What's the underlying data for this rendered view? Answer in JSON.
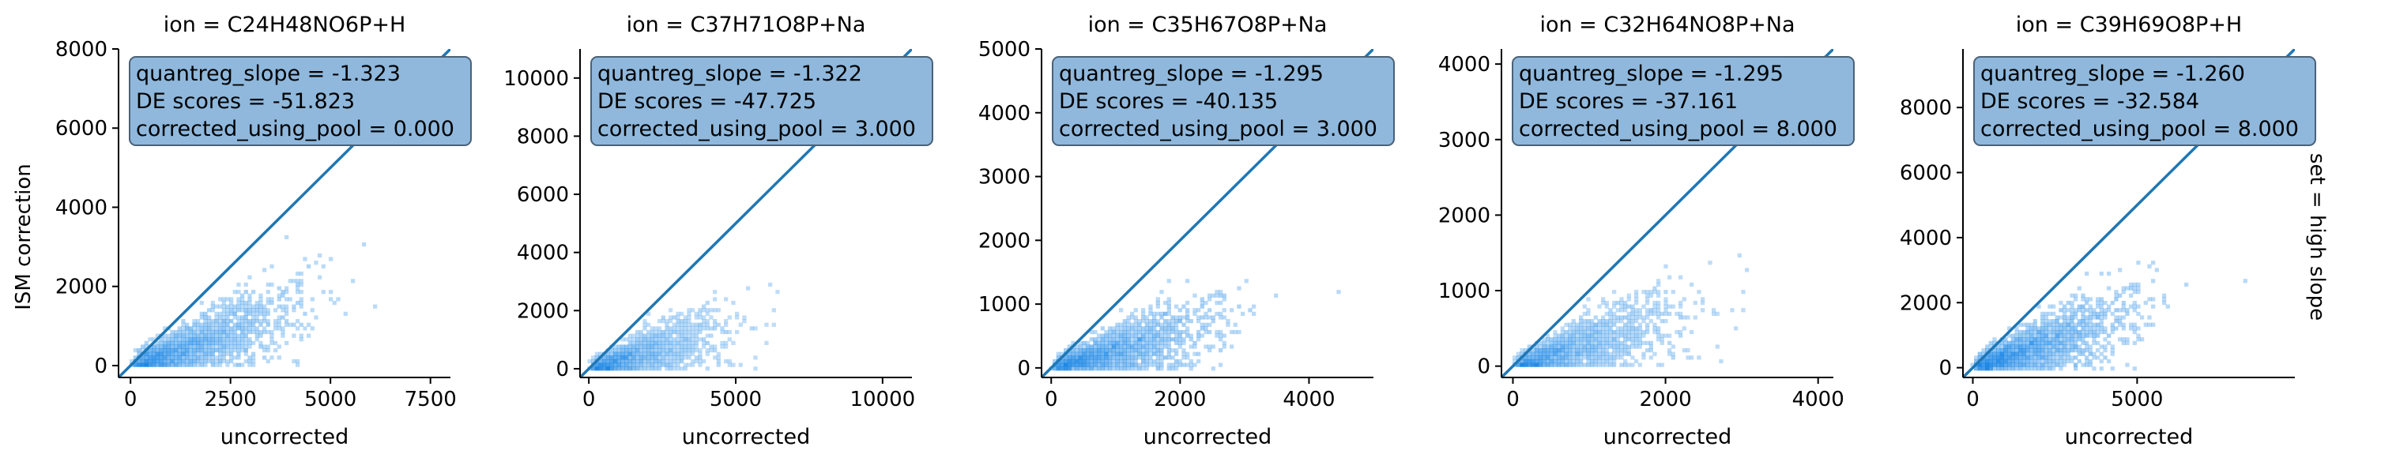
{
  "figure": {
    "row_label": "set = high slope",
    "ylabel": "ISM correction",
    "xlabel": "uncorrected"
  },
  "chart_data": [
    {
      "type": "scatter",
      "title": "ion = C24H48NO6P+H",
      "xlabel": "uncorrected",
      "ylabel": "ISM correction",
      "xlim": [
        -300,
        8000
      ],
      "ylim": [
        -300,
        8000
      ],
      "xticks": [
        0,
        2500,
        5000,
        7500
      ],
      "xtick_labels": [
        "0",
        "2500",
        "5000",
        "7500"
      ],
      "yticks": [
        0,
        2000,
        4000,
        6000,
        8000
      ],
      "ytick_labels": [
        "0",
        "2000",
        "4000",
        "6000",
        "8000"
      ],
      "identity_line": true,
      "annotation": [
        "quantreg_slope = -1.323",
        "DE scores = -51.823",
        "corrected_using_pool = 0.000"
      ],
      "density": {
        "xmax": 7400,
        "slope": 0.32,
        "spread": 450,
        "ymax": 3600
      }
    },
    {
      "type": "scatter",
      "title": "ion = C37H71O8P+Na",
      "xlabel": "uncorrected",
      "ylabel": "",
      "xlim": [
        -300,
        11000
      ],
      "ylim": [
        -300,
        11000
      ],
      "xticks": [
        0,
        5000,
        10000
      ],
      "xtick_labels": [
        "0",
        "5000",
        "10000"
      ],
      "yticks": [
        0,
        2000,
        4000,
        6000,
        8000,
        10000
      ],
      "ytick_labels": [
        "0",
        "2000",
        "4000",
        "6000",
        "8000",
        "10000"
      ],
      "identity_line": true,
      "annotation": [
        "quantreg_slope = -1.322",
        "DE scores = -47.725",
        "corrected_using_pool = 3.000"
      ],
      "density": {
        "xmax": 8000,
        "slope": 0.28,
        "spread": 450,
        "ymax": 3200
      }
    },
    {
      "type": "scatter",
      "title": "ion = C35H67O8P+Na",
      "xlabel": "uncorrected",
      "ylabel": "",
      "xlim": [
        -150,
        5000
      ],
      "ylim": [
        -150,
        5000
      ],
      "xticks": [
        0,
        2000,
        4000
      ],
      "xtick_labels": [
        "0",
        "2000",
        "4000"
      ],
      "yticks": [
        0,
        1000,
        2000,
        3000,
        4000,
        5000
      ],
      "ytick_labels": [
        "0",
        "1000",
        "2000",
        "3000",
        "4000",
        "5000"
      ],
      "identity_line": true,
      "annotation": [
        "quantreg_slope = -1.295",
        "DE scores = -40.135",
        "corrected_using_pool = 3.000"
      ],
      "density": {
        "xmax": 4600,
        "slope": 0.27,
        "spread": 220,
        "ymax": 1400
      }
    },
    {
      "type": "scatter",
      "title": "ion = C32H64NO8P+Na",
      "xlabel": "uncorrected",
      "ylabel": "",
      "xlim": [
        -150,
        4200
      ],
      "ylim": [
        -150,
        4200
      ],
      "xticks": [
        0,
        2000,
        4000
      ],
      "xtick_labels": [
        "0",
        "2000",
        "4000"
      ],
      "yticks": [
        0,
        1000,
        2000,
        3000,
        4000
      ],
      "ytick_labels": [
        "0",
        "1000",
        "2000",
        "3000",
        "4000"
      ],
      "identity_line": true,
      "annotation": [
        "quantreg_slope = -1.295",
        "DE scores = -37.161",
        "corrected_using_pool = 8.000"
      ],
      "density": {
        "xmax": 3800,
        "slope": 0.3,
        "spread": 200,
        "ymax": 1500
      }
    },
    {
      "type": "scatter",
      "title": "ion = C39H69O8P+H",
      "xlabel": "uncorrected",
      "ylabel": "",
      "xlim": [
        -300,
        9800
      ],
      "ylim": [
        -300,
        9800
      ],
      "xticks": [
        0,
        5000
      ],
      "xtick_labels": [
        "0",
        "5000"
      ],
      "yticks": [
        0,
        2000,
        4000,
        6000,
        8000
      ],
      "ytick_labels": [
        "0",
        "2000",
        "4000",
        "6000",
        "8000"
      ],
      "identity_line": true,
      "annotation": [
        "quantreg_slope = -1.260",
        "DE scores = -32.584",
        "corrected_using_pool = 8.000"
      ],
      "density": {
        "xmax": 8600,
        "slope": 0.33,
        "spread": 550,
        "ymax": 3700
      }
    }
  ],
  "colors": {
    "line": "#1f77b4",
    "bin": "#1e88e5",
    "box_fill": "#8fb8dc",
    "box_edge": "#4a6177"
  }
}
